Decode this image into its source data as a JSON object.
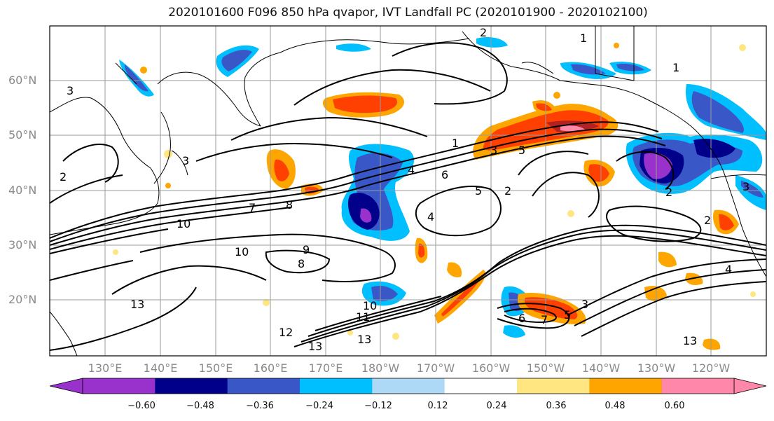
{
  "title": "2020101600 F096 850 hPa qvapor, IVT Landfall PC (2020101900 - 2020102100)",
  "lat_labels": [
    "60°N",
    "50°N",
    "40°N",
    "30°N",
    "20°N"
  ],
  "lon_labels": [
    "130°E",
    "140°E",
    "150°E",
    "160°E",
    "170°E",
    "180°W",
    "170°W",
    "160°W",
    "150°W",
    "140°W",
    "130°W",
    "120°W"
  ],
  "colorbar": {
    "ticks": [
      "−0.60",
      "−0.48",
      "−0.36",
      "−0.24",
      "−0.12",
      "0.12",
      "0.24",
      "0.36",
      "0.48",
      "0.60"
    ],
    "colors": [
      "#9932CC",
      "#00008B",
      "#3A57C8",
      "#00BFFF",
      "#ADD8F6",
      "#FFFFFF",
      "#FFE680",
      "#FFA500",
      "#FF4000",
      "#B22222",
      "#FF88AA"
    ]
  },
  "contour_labels": [
    "1",
    "2",
    "3",
    "4",
    "5",
    "6",
    "7",
    "8",
    "9",
    "10",
    "11",
    "12",
    "13"
  ],
  "map": {
    "extent_lon": [
      120,
      250
    ],
    "extent_lat": [
      10,
      70
    ],
    "field_name": "850 hPa qvapor",
    "contour_name": "IVT Landfall PC"
  }
}
